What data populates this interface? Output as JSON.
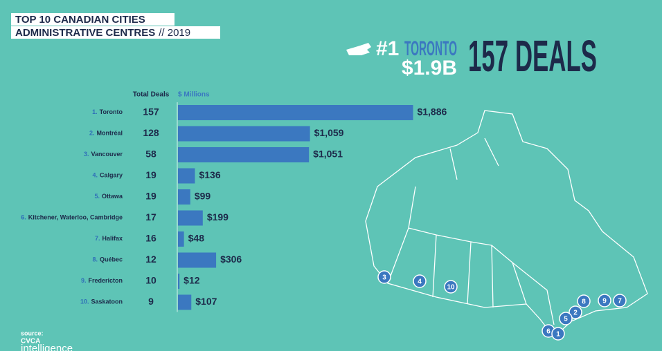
{
  "header": {
    "title_line1": "TOP 10 CANADIAN CITIES",
    "title_line2": "ADMINISTRATIVE CENTRES",
    "title_year": "// 2019"
  },
  "highlight": {
    "rank": "#1",
    "city": "TORONTO",
    "amount": "$1.9B",
    "deals": "157 DEALS"
  },
  "chart_data": {
    "type": "bar",
    "orientation": "horizontal",
    "deals_header": "Total Deals",
    "value_header": "$ Millions",
    "ranks": [
      "1.",
      "2.",
      "3.",
      "4.",
      "5.",
      "6.",
      "7.",
      "8.",
      "9.",
      "10."
    ],
    "categories": [
      "Toronto",
      "Montréal",
      "Vancouver",
      "Calgary",
      "Ottawa",
      "Kitchener, Waterloo, Cambridge",
      "Halifax",
      "Québec",
      "Fredericton",
      "Saskatoon"
    ],
    "deals": [
      157,
      128,
      58,
      19,
      19,
      17,
      16,
      12,
      10,
      9
    ],
    "values": [
      1886,
      1059,
      1051,
      136,
      99,
      199,
      48,
      306,
      12,
      107
    ],
    "value_labels": [
      "$1,886",
      "$1,059",
      "$1,051",
      "$136",
      "$99",
      "$199",
      "$48",
      "$306",
      "$12",
      "$107"
    ],
    "color": "#3b78c0"
  },
  "map": {
    "markers": [
      3,
      4,
      10,
      8,
      9,
      7,
      2,
      5,
      6,
      1
    ]
  },
  "source": {
    "label": "source:",
    "logo_top": "CVCA",
    "logo_bottom": "intelligence"
  }
}
